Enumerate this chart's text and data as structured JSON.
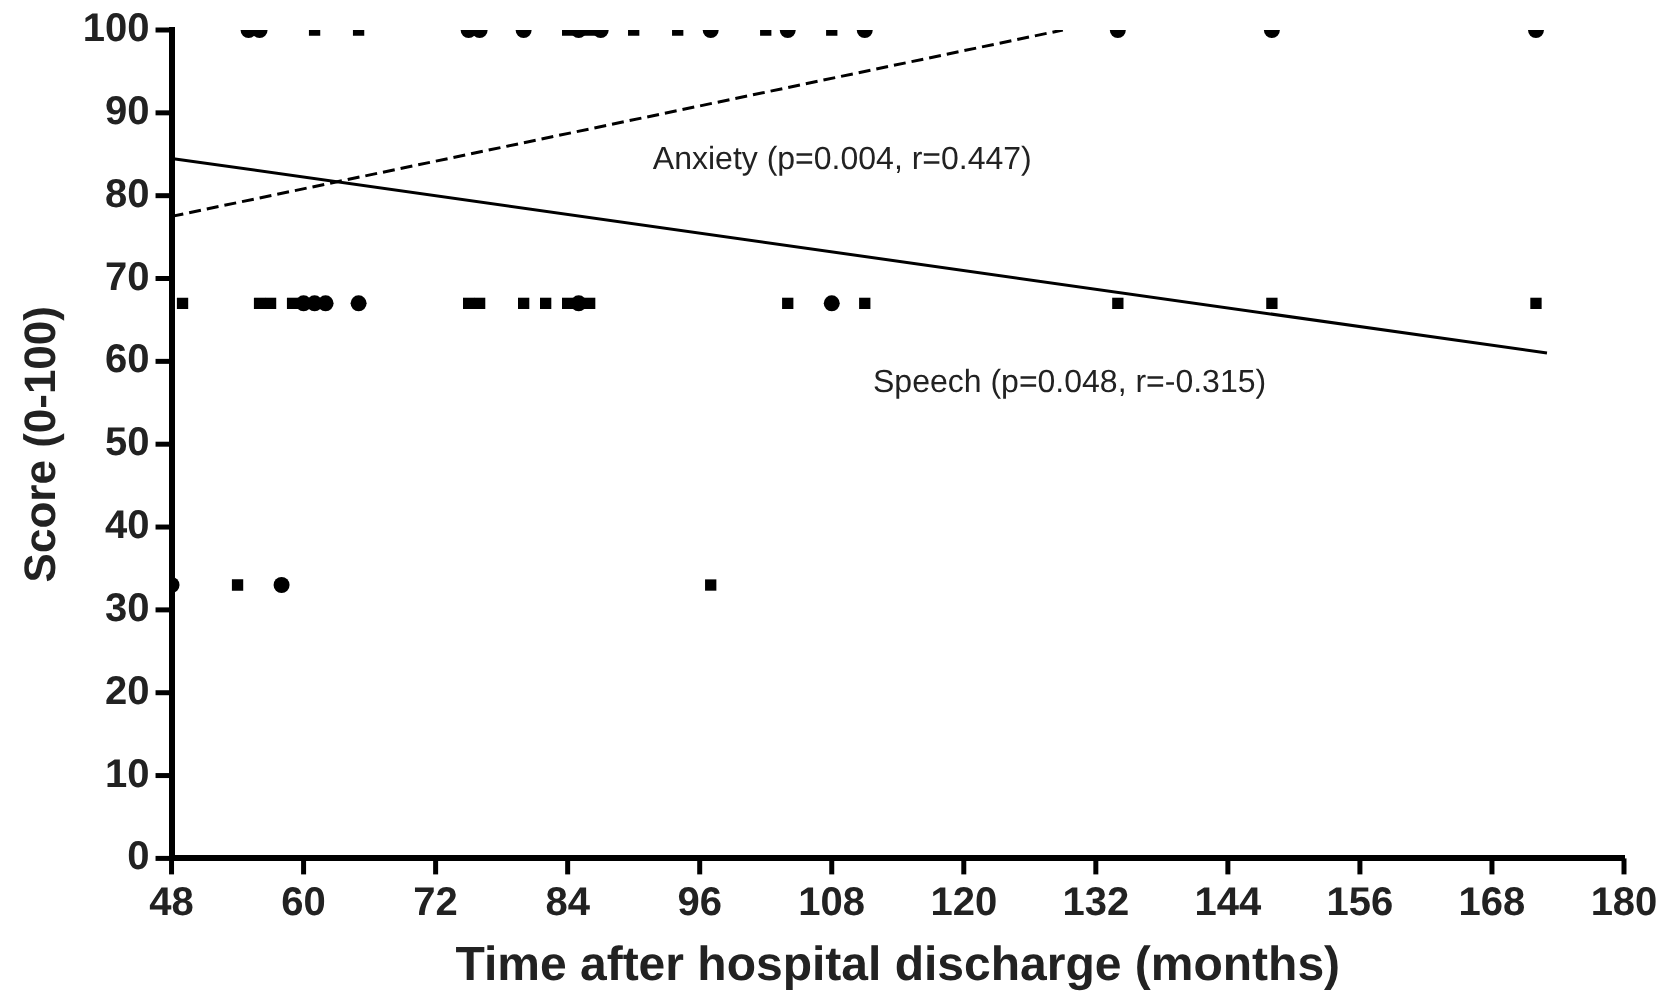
{
  "chart_data": {
    "type": "scatter",
    "xlabel": "Time after hospital discharge (months)",
    "ylabel": "Score (0-100)",
    "xlim": [
      48,
      180
    ],
    "xticks": [
      48,
      60,
      72,
      84,
      96,
      108,
      120,
      132,
      144,
      156,
      168,
      180
    ],
    "ylim": [
      0,
      100
    ],
    "yticks": [
      0,
      10,
      20,
      30,
      40,
      50,
      60,
      70,
      80,
      90,
      100
    ],
    "grid": false,
    "legend": false,
    "series": [
      {
        "type": "scatter",
        "marker": "circle",
        "color": "#000000",
        "x": [
          55,
          56,
          75,
          76,
          80,
          85,
          87,
          97,
          104,
          111,
          134,
          148,
          172,
          60,
          61,
          62,
          65,
          85,
          108,
          48,
          58
        ],
        "values": [
          100,
          100,
          100,
          100,
          100,
          100,
          100,
          100,
          100,
          100,
          100,
          100,
          100,
          67,
          67,
          67,
          67,
          67,
          67,
          33,
          33
        ]
      },
      {
        "type": "scatter",
        "marker": "square",
        "color": "#000000",
        "x": [
          61,
          65,
          84,
          86,
          90,
          94,
          102,
          108,
          49,
          56,
          57,
          59,
          75,
          76,
          80,
          82,
          84,
          86,
          104,
          111,
          134,
          148,
          172,
          54,
          97
        ],
        "values": [
          100,
          100,
          100,
          100,
          100,
          100,
          100,
          100,
          67,
          67,
          67,
          67,
          67,
          67,
          67,
          67,
          67,
          67,
          67,
          67,
          67,
          67,
          67,
          33,
          33
        ]
      },
      {
        "type": "line",
        "name": "Anxiety (p=0.004, r=0.447)",
        "marker": "none",
        "line_style": "dashed",
        "color": "#000000",
        "x": [
          48,
          129
        ],
        "values": [
          77.5,
          100
        ]
      },
      {
        "type": "line",
        "name": "Speech (p=0.048, r=-0.315)",
        "marker": "none",
        "line_style": "solid",
        "color": "#000000",
        "x": [
          48,
          173
        ],
        "values": [
          84.5,
          61
        ]
      }
    ]
  }
}
